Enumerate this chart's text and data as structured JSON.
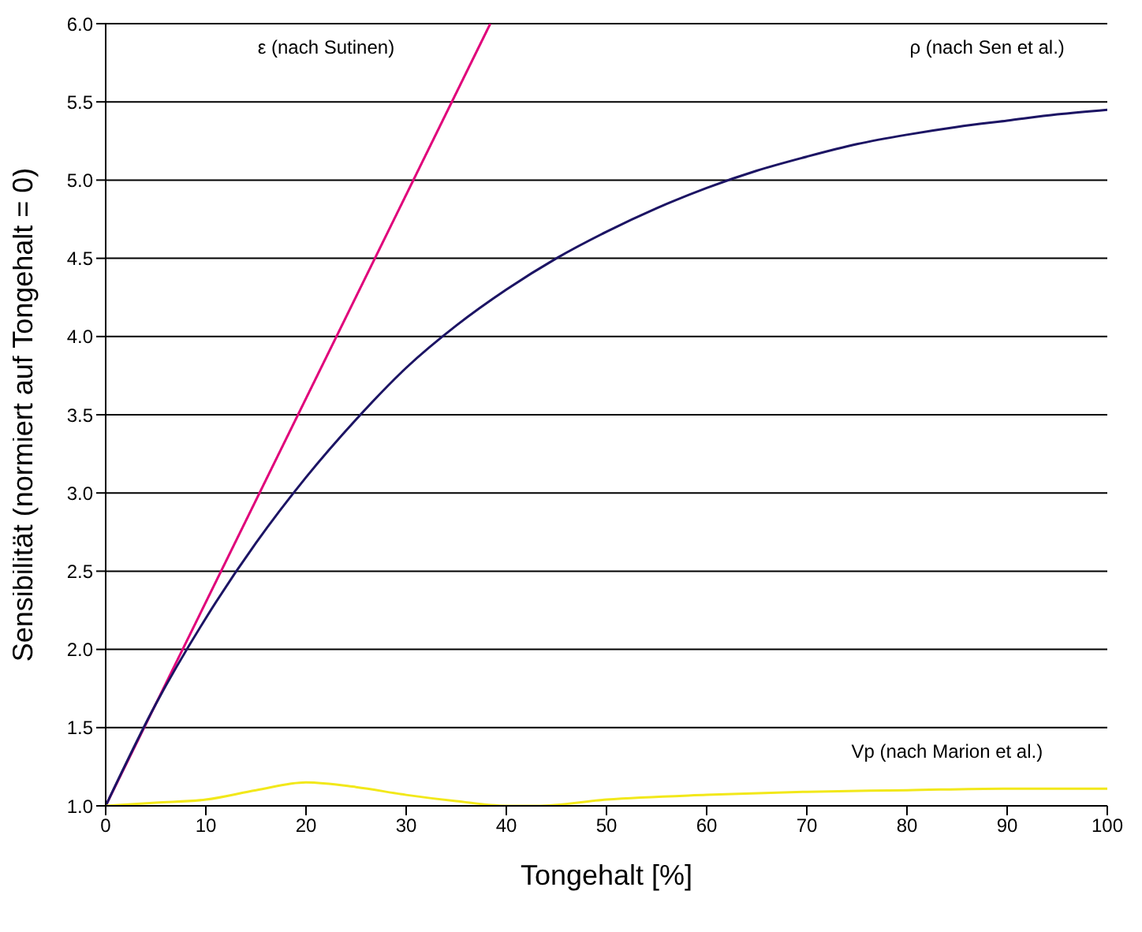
{
  "chart_data": {
    "type": "line",
    "xlabel": "Tongehalt [%]",
    "ylabel": "Sensibilität (normiert auf Tongehalt = 0)",
    "xlim": [
      0,
      100
    ],
    "xticks": [
      0,
      10,
      20,
      30,
      40,
      50,
      60,
      70,
      80,
      90,
      100
    ],
    "ylim": [
      1,
      6
    ],
    "yticks": [
      {
        "value": 1,
        "label": "1.0"
      },
      {
        "value": 1.5,
        "label": "1.5"
      },
      {
        "value": 2,
        "label": "2.0"
      },
      {
        "value": 2.5,
        "label": "2.5"
      },
      {
        "value": 3,
        "label": "3.0"
      },
      {
        "value": 3.5,
        "label": "3.5"
      },
      {
        "value": 4,
        "label": "4.0"
      },
      {
        "value": 4.5,
        "label": "4.5"
      },
      {
        "value": 5,
        "label": "5.0"
      },
      {
        "value": 5.5,
        "label": "5.5"
      },
      {
        "value": 6,
        "label": "6.0"
      }
    ],
    "grid": "y",
    "marker": "none",
    "line_style": "solid",
    "series": [
      {
        "color": "#e0007a",
        "x": [
          0,
          38.4
        ],
        "values": [
          1,
          6
        ]
      },
      {
        "color": "#1c1464",
        "x": [
          0,
          5,
          10,
          15,
          20,
          25,
          30,
          35,
          40,
          45,
          50,
          55,
          60,
          65,
          70,
          75,
          80,
          85,
          90,
          95,
          100
        ],
        "values": [
          1,
          1.65,
          2.2,
          2.68,
          3.1,
          3.47,
          3.8,
          4.07,
          4.3,
          4.5,
          4.67,
          4.82,
          4.95,
          5.06,
          5.15,
          5.23,
          5.29,
          5.34,
          5.38,
          5.42,
          5.45
        ]
      },
      {
        "color": "#f2e81a",
        "x": [
          0,
          5,
          10,
          15,
          20,
          25,
          30,
          35,
          40,
          43,
          50,
          60,
          70,
          80,
          90,
          100
        ],
        "values": [
          1,
          1.02,
          1.04,
          1.1,
          1.15,
          1.12,
          1.07,
          1.03,
          1.0,
          1.0,
          1.04,
          1.07,
          1.09,
          1.1,
          1.11,
          1.11
        ]
      }
    ],
    "annotations": [
      "ε (nach Sutinen)",
      "ρ (nach Sen et al.)",
      "Vp (nach Marion et al.)"
    ]
  }
}
